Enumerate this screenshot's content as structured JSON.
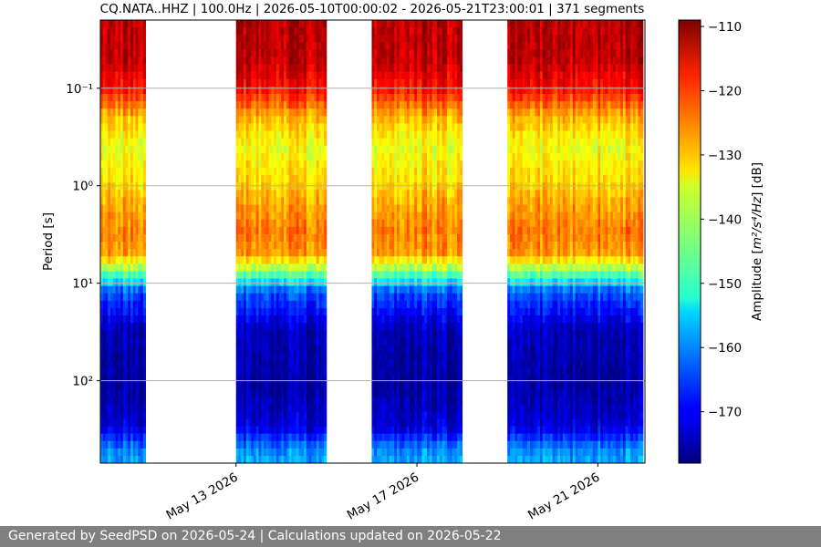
{
  "chart_data": {
    "type": "heatmap",
    "title": "CQ.NATA..HHZ | 100.0Hz | 2026-05-10T00:00:02 - 2026-05-21T23:00:01 | 371 segments",
    "ylabel": "Period [s]",
    "y_scale": "log",
    "y_inverted": true,
    "ylim": [
      0.02,
      700
    ],
    "y_ticks": [
      0.1,
      1,
      10,
      100
    ],
    "y_tick_labels": [
      "10⁻¹",
      "10⁰",
      "10¹",
      "10²"
    ],
    "x_type": "date",
    "xlim": [
      "2026-05-10",
      "2026-05-22T01:00:00"
    ],
    "x_ticks": [
      "2026-05-13",
      "2026-05-17",
      "2026-05-21"
    ],
    "x_tick_labels": [
      "May 13 2026",
      "May 17 2026",
      "May 21 2026"
    ],
    "grid": "horizontal",
    "colorbar": {
      "label": "Amplitude [m²/s⁴/Hz] [dB]",
      "range": [
        -178,
        -109
      ],
      "ticks": [
        -110,
        -120,
        -130,
        -140,
        -150,
        -160,
        -170
      ],
      "tick_labels": [
        "−110",
        "−120",
        "−130",
        "−140",
        "−150",
        "−160",
        "−170"
      ],
      "colormap": "jet"
    },
    "data_segments": [
      {
        "start": "2026-05-10",
        "end": "2026-05-11"
      },
      {
        "start": "2026-05-13",
        "end": "2026-05-14"
      },
      {
        "start": "2026-05-14",
        "end": "2026-05-15"
      },
      {
        "start": "2026-05-16",
        "end": "2026-05-17"
      },
      {
        "start": "2026-05-17",
        "end": "2026-05-18"
      },
      {
        "start": "2026-05-19",
        "end": "2026-05-20"
      },
      {
        "start": "2026-05-20",
        "end": "2026-05-21"
      },
      {
        "start": "2026-05-21",
        "end": "2026-05-22"
      }
    ],
    "spectrum_profile": [
      {
        "period": 0.02,
        "db": -113
      },
      {
        "period": 0.05,
        "db": -113
      },
      {
        "period": 0.1,
        "db": -118
      },
      {
        "period": 0.2,
        "db": -130
      },
      {
        "period": 0.4,
        "db": -136
      },
      {
        "period": 0.8,
        "db": -133
      },
      {
        "period": 1.5,
        "db": -129
      },
      {
        "period": 3,
        "db": -126
      },
      {
        "period": 5,
        "db": -128
      },
      {
        "period": 7,
        "db": -140
      },
      {
        "period": 9,
        "db": -150
      },
      {
        "period": 12,
        "db": -163
      },
      {
        "period": 30,
        "db": -174
      },
      {
        "period": 100,
        "db": -176
      },
      {
        "period": 300,
        "db": -172
      },
      {
        "period": 500,
        "db": -160
      },
      {
        "period": 700,
        "db": -158
      }
    ]
  },
  "footer": {
    "text": "Generated by SeedPSD on 2026-05-24 | Calculations updated on 2026-05-22"
  }
}
